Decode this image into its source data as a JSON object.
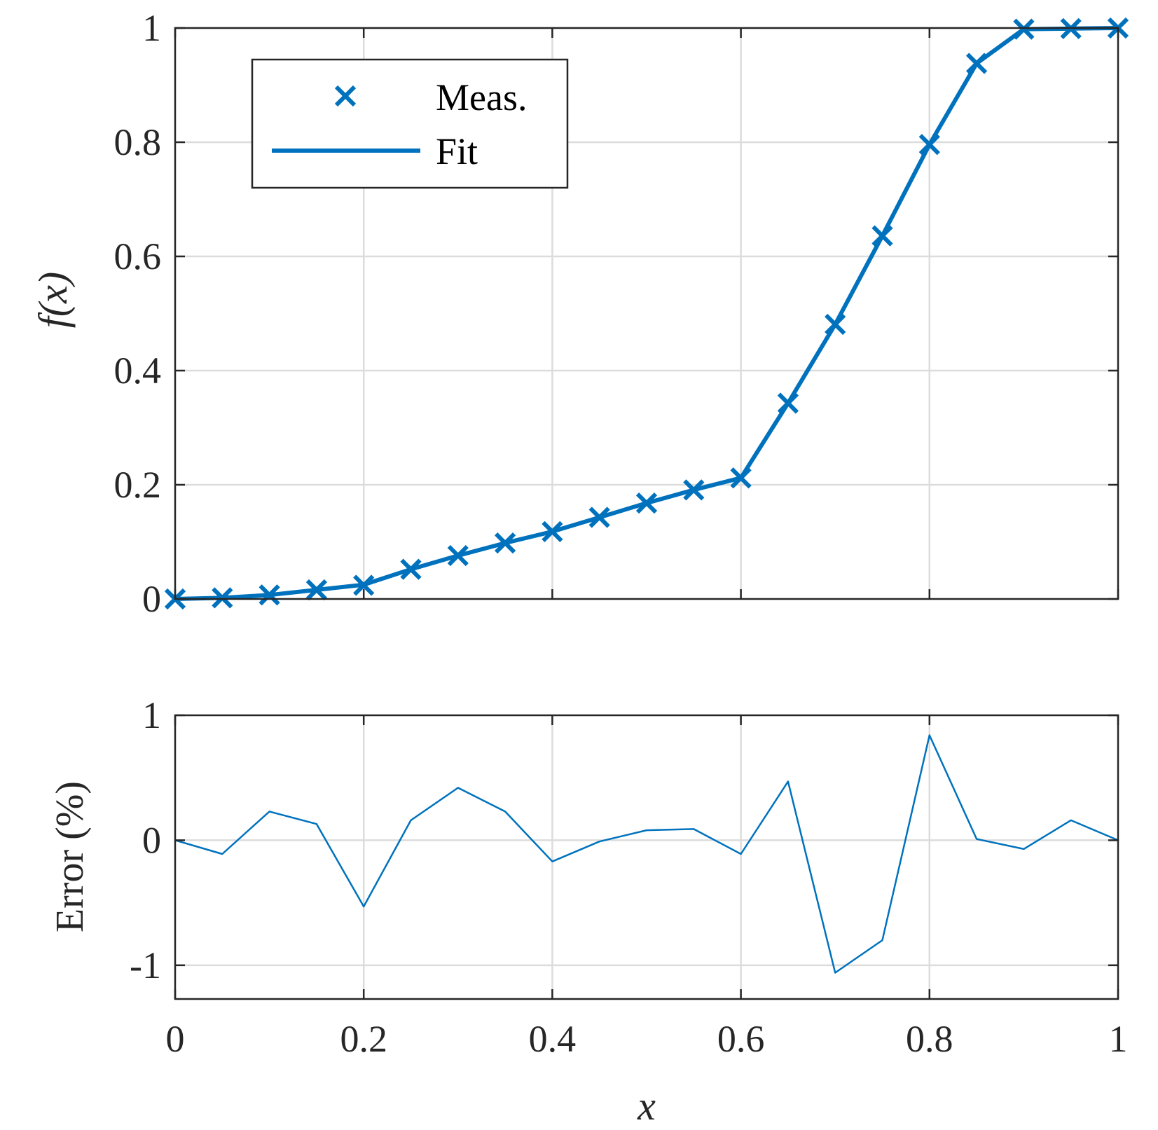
{
  "chart_data": [
    {
      "type": "line",
      "title": "",
      "xlabel": "",
      "ylabel": "f(x)",
      "xlim": [
        0,
        1
      ],
      "ylim": [
        0,
        1
      ],
      "xticks": [
        0,
        0.2,
        0.4,
        0.6,
        0.8,
        1
      ],
      "yticks": [
        0,
        0.2,
        0.4,
        0.6,
        0.8,
        1
      ],
      "xtick_labels": [
        "",
        "",
        "",
        "",
        "",
        ""
      ],
      "ytick_labels": [
        "0",
        "0.2",
        "0.4",
        "0.6",
        "0.8",
        "1"
      ],
      "grid": true,
      "legend_position": "top-left",
      "series": [
        {
          "name": "Meas.",
          "style": "markers-x",
          "color": "#0072BD",
          "x": [
            0,
            0.05,
            0.1,
            0.15,
            0.2,
            0.25,
            0.3,
            0.35,
            0.4,
            0.45,
            0.5,
            0.55,
            0.6,
            0.65,
            0.7,
            0.75,
            0.8,
            0.85,
            0.9,
            0.95,
            1
          ],
          "y": [
            0,
            0.002,
            0.007,
            0.016,
            0.024,
            0.052,
            0.076,
            0.098,
            0.118,
            0.143,
            0.168,
            0.191,
            0.212,
            0.343,
            0.481,
            0.636,
            0.796,
            0.938,
            0.998,
            0.999,
            1.0
          ]
        },
        {
          "name": "Fit",
          "style": "line",
          "color": "#0072BD",
          "x": [
            0,
            0.05,
            0.1,
            0.15,
            0.2,
            0.25,
            0.3,
            0.35,
            0.4,
            0.45,
            0.5,
            0.55,
            0.6,
            0.65,
            0.7,
            0.75,
            0.8,
            0.85,
            0.9,
            0.95,
            1
          ],
          "y": [
            0,
            0.002,
            0.007,
            0.016,
            0.025,
            0.052,
            0.076,
            0.098,
            0.118,
            0.143,
            0.168,
            0.191,
            0.212,
            0.343,
            0.481,
            0.636,
            0.796,
            0.938,
            0.998,
            0.999,
            1.0
          ]
        }
      ]
    },
    {
      "type": "line",
      "title": "",
      "xlabel": "x",
      "ylabel": "Error (%)",
      "xlim": [
        0,
        1
      ],
      "ylim": [
        -1.27,
        1
      ],
      "xticks": [
        0,
        0.2,
        0.4,
        0.6,
        0.8,
        1
      ],
      "yticks": [
        -1,
        0,
        1
      ],
      "xtick_labels": [
        "0",
        "0.2",
        "0.4",
        "0.6",
        "0.8",
        "1"
      ],
      "ytick_labels": [
        "-1",
        "0",
        "1"
      ],
      "grid": true,
      "series": [
        {
          "style": "line-thin",
          "color": "#0072BD",
          "x": [
            0,
            0.05,
            0.1,
            0.15,
            0.2,
            0.25,
            0.3,
            0.35,
            0.4,
            0.45,
            0.5,
            0.55,
            0.6,
            0.65,
            0.7,
            0.75,
            0.8,
            0.85,
            0.9,
            0.95,
            1
          ],
          "y": [
            0,
            -0.11,
            0.23,
            0.13,
            -0.53,
            0.16,
            0.42,
            0.23,
            -0.17,
            -0.01,
            0.08,
            0.09,
            -0.11,
            0.47,
            -1.06,
            -0.8,
            0.84,
            0.01,
            -0.07,
            0.16,
            0
          ]
        }
      ]
    }
  ]
}
